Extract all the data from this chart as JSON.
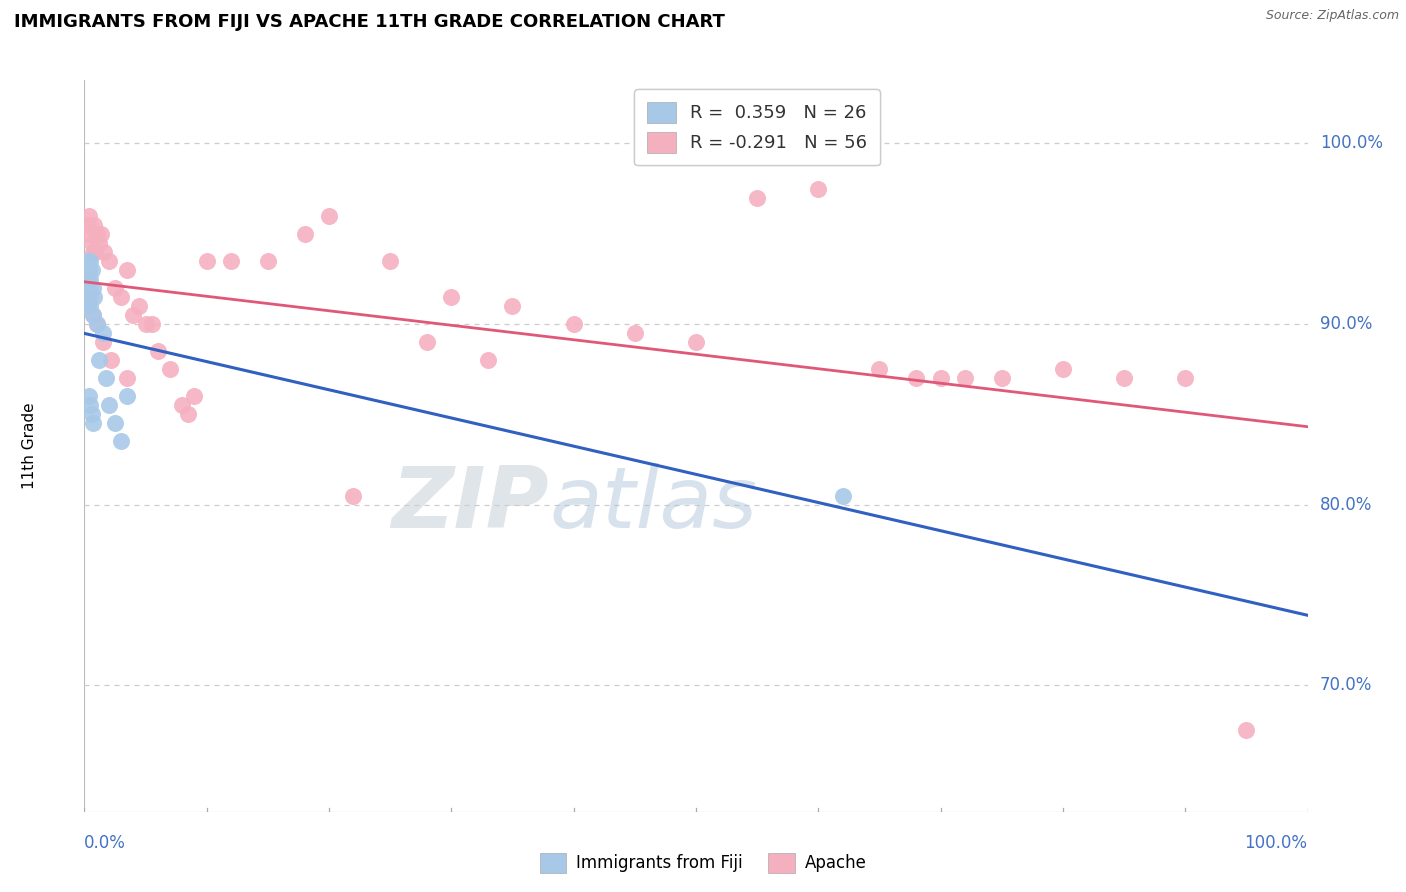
{
  "title": "IMMIGRANTS FROM FIJI VS APACHE 11TH GRADE CORRELATION CHART",
  "source": "Source: ZipAtlas.com",
  "ylabel": "11th Grade",
  "y_ticks": [
    70.0,
    80.0,
    90.0,
    100.0
  ],
  "y_min": 63.0,
  "y_max": 103.5,
  "x_min": 0.0,
  "x_max": 100.0,
  "R_fiji": 0.359,
  "N_fiji": 26,
  "R_apache": -0.291,
  "N_apache": 56,
  "fiji_scatter_color": "#a8c8e8",
  "apache_scatter_color": "#f5b0c0",
  "fiji_line_color": "#3060c0",
  "apache_line_color": "#e05878",
  "fiji_x": [
    0.3,
    0.3,
    0.3,
    0.4,
    0.4,
    0.5,
    0.5,
    0.6,
    0.7,
    0.8,
    0.3,
    0.5,
    0.7,
    1.0,
    1.5,
    2.0,
    2.5,
    3.0,
    0.4,
    0.5,
    0.6,
    0.7,
    1.2,
    1.8,
    3.5,
    62.0
  ],
  "fiji_y": [
    93.5,
    92.5,
    91.5,
    93.0,
    92.0,
    93.5,
    92.5,
    93.0,
    92.0,
    91.5,
    91.0,
    91.0,
    90.5,
    90.0,
    89.5,
    85.5,
    84.5,
    83.5,
    86.0,
    85.5,
    85.0,
    84.5,
    88.0,
    87.0,
    86.0,
    80.5
  ],
  "apache_x": [
    0.3,
    0.4,
    0.5,
    0.6,
    0.7,
    0.8,
    0.9,
    1.0,
    1.2,
    1.4,
    1.6,
    2.0,
    2.5,
    3.0,
    3.5,
    4.0,
    4.5,
    5.0,
    6.0,
    7.0,
    8.0,
    9.0,
    10.0,
    12.0,
    15.0,
    18.0,
    20.0,
    25.0,
    30.0,
    35.0,
    0.3,
    0.5,
    0.7,
    1.0,
    1.5,
    2.2,
    3.5,
    5.5,
    8.5,
    40.0,
    45.0,
    50.0,
    55.0,
    60.0,
    65.0,
    70.0,
    75.0,
    80.0,
    85.0,
    90.0,
    95.0,
    22.0,
    28.0,
    33.0,
    68.0,
    72.0
  ],
  "apache_y": [
    95.5,
    96.0,
    95.0,
    94.5,
    94.0,
    95.5,
    94.0,
    95.0,
    94.5,
    95.0,
    94.0,
    93.5,
    92.0,
    91.5,
    93.0,
    90.5,
    91.0,
    90.0,
    88.5,
    87.5,
    85.5,
    86.0,
    93.5,
    93.5,
    93.5,
    95.0,
    96.0,
    93.5,
    91.5,
    91.0,
    92.5,
    91.5,
    90.5,
    90.0,
    89.0,
    88.0,
    87.0,
    90.0,
    85.0,
    90.0,
    89.5,
    89.0,
    97.0,
    97.5,
    87.5,
    87.0,
    87.0,
    87.5,
    87.0,
    87.0,
    67.5,
    80.5,
    89.0,
    88.0,
    87.0,
    87.0
  ],
  "watermark_zip": "ZIP",
  "watermark_atlas": "atlas",
  "legend_fiji_label": "Immigrants from Fiji",
  "legend_apache_label": "Apache",
  "bg_color": "#ffffff",
  "grid_color": "#cccccc"
}
